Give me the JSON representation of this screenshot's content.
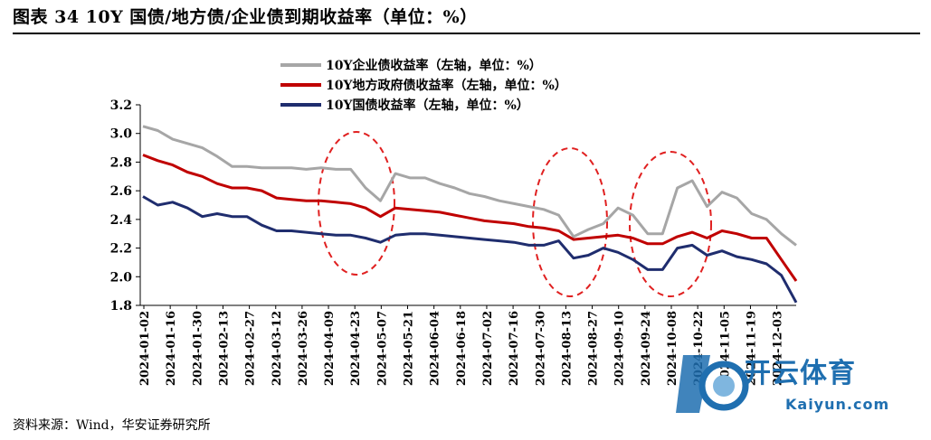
{
  "title": "图表 34 10Y 国债/地方债/企业债到期收益率（单位：%）",
  "source": "资料来源：Wind，华安证券研究所",
  "watermark": {
    "brand": "开云体育",
    "sub": "Kaiyun.com"
  },
  "colors": {
    "corp": "#a6a6a6",
    "local": "#c00000",
    "treasury": "#1f2d6e",
    "ellipse": "#e02020"
  },
  "chart_data": {
    "type": "line",
    "ylim": [
      1.8,
      3.2
    ],
    "yticks": [
      "1.8",
      "2.0",
      "2.2",
      "2.4",
      "2.6",
      "2.8",
      "3.0",
      "3.2"
    ],
    "xticks": [
      "2024-01-02",
      "2024-01-16",
      "2024-01-30",
      "2024-02-13",
      "2024-02-27",
      "2024-03-12",
      "2024-03-26",
      "2024-04-09",
      "2024-04-23",
      "2024-05-07",
      "2024-05-21",
      "2024-06-04",
      "2024-06-18",
      "2024-07-02",
      "2024-07-16",
      "2024-07-30",
      "2024-08-13",
      "2024-08-27",
      "2024-09-10",
      "2024-09-24",
      "2024-10-08",
      "2024-10-22",
      "2024-11-05",
      "2024-11-19",
      "2024-12-03"
    ],
    "series": [
      {
        "name": "10Y企业债收益率（左轴，单位：%）",
        "color_key": "corp",
        "values": [
          3.05,
          3.02,
          2.96,
          2.93,
          2.9,
          2.84,
          2.77,
          2.77,
          2.76,
          2.76,
          2.76,
          2.75,
          2.76,
          2.75,
          2.75,
          2.62,
          2.53,
          2.72,
          2.69,
          2.69,
          2.65,
          2.62,
          2.58,
          2.56,
          2.53,
          2.51,
          2.49,
          2.47,
          2.43,
          2.28,
          2.33,
          2.37,
          2.48,
          2.43,
          2.3,
          2.3,
          2.62,
          2.67,
          2.49,
          2.59,
          2.55,
          2.44,
          2.4,
          2.3,
          2.22
        ]
      },
      {
        "name": "10Y地方政府债收益率（左轴，单位：%）",
        "color_key": "local",
        "values": [
          2.85,
          2.81,
          2.78,
          2.73,
          2.7,
          2.65,
          2.62,
          2.62,
          2.6,
          2.55,
          2.54,
          2.53,
          2.53,
          2.52,
          2.51,
          2.48,
          2.42,
          2.48,
          2.47,
          2.46,
          2.45,
          2.43,
          2.41,
          2.39,
          2.38,
          2.37,
          2.35,
          2.34,
          2.32,
          2.26,
          2.27,
          2.28,
          2.29,
          2.27,
          2.23,
          2.23,
          2.28,
          2.31,
          2.27,
          2.32,
          2.3,
          2.27,
          2.27,
          2.12,
          1.97
        ]
      },
      {
        "name": "10Y国债收益率（左轴，单位：%）",
        "color_key": "treasury",
        "values": [
          2.56,
          2.5,
          2.52,
          2.48,
          2.42,
          2.44,
          2.42,
          2.42,
          2.36,
          2.32,
          2.32,
          2.31,
          2.3,
          2.29,
          2.29,
          2.27,
          2.24,
          2.29,
          2.3,
          2.3,
          2.29,
          2.28,
          2.27,
          2.26,
          2.25,
          2.24,
          2.22,
          2.22,
          2.25,
          2.13,
          2.15,
          2.2,
          2.17,
          2.12,
          2.05,
          2.05,
          2.2,
          2.22,
          2.15,
          2.18,
          2.14,
          2.12,
          2.09,
          2.01,
          1.82
        ]
      }
    ]
  }
}
